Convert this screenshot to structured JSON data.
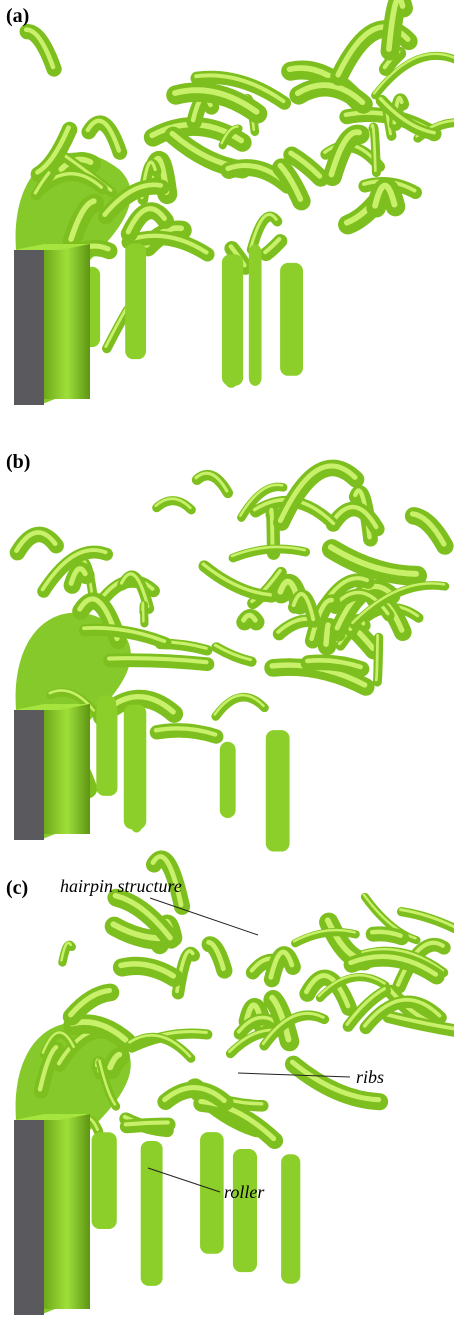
{
  "panels": [
    {
      "label": "(a)"
    },
    {
      "label": "(b)"
    },
    {
      "label": "(c)",
      "annotations": [
        "hairpin structure",
        "ribs",
        "roller"
      ]
    }
  ]
}
